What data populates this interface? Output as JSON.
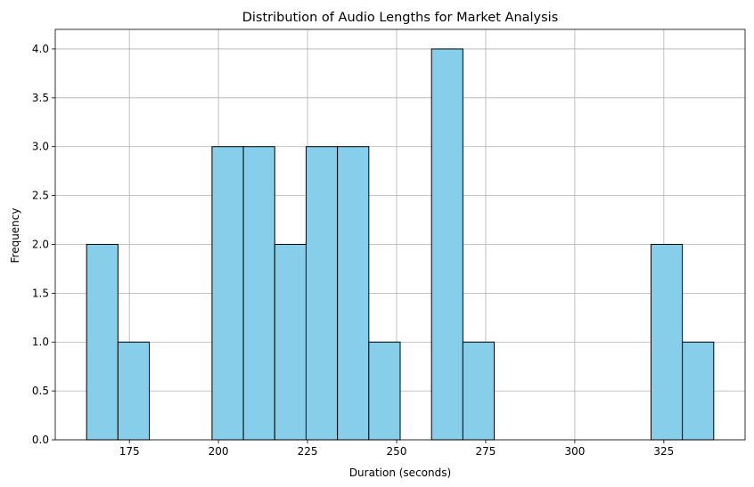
{
  "chart_data": {
    "type": "bar",
    "title": "Distribution of Audio Lengths for Market Analysis",
    "xlabel": "Duration (seconds)",
    "ylabel": "Frequency",
    "bin_edges": [
      163.0,
      171.8,
      180.6,
      189.4,
      198.2,
      207.0,
      215.8,
      224.6,
      233.4,
      242.2,
      251.0,
      259.8,
      268.6,
      277.4,
      286.2,
      295.0,
      303.8,
      312.6,
      321.4,
      330.2,
      339.0
    ],
    "values": [
      2,
      1,
      0,
      0,
      3,
      3,
      2,
      3,
      3,
      1,
      0,
      4,
      1,
      0,
      0,
      0,
      0,
      0,
      2,
      1
    ],
    "xlim": [
      154.2,
      347.8
    ],
    "ylim": [
      0,
      4.2
    ],
    "xticks": [
      175,
      200,
      225,
      250,
      275,
      300,
      325
    ],
    "yticks": [
      0.0,
      0.5,
      1.0,
      1.5,
      2.0,
      2.5,
      3.0,
      3.5,
      4.0
    ],
    "grid": true,
    "colors": {
      "bar_fill": "#87ceeb",
      "bar_edge": "#000000",
      "grid": "#b0b0b0"
    }
  }
}
